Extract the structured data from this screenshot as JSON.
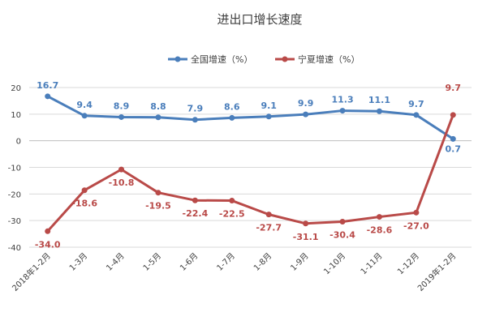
{
  "chart_data": {
    "type": "line",
    "title": "进出口增长速度",
    "categories": [
      "2018年1-2月",
      "1-3月",
      "1-4月",
      "1-5月",
      "1-6月",
      "1-7月",
      "1-8月",
      "1-9月",
      "1-10月",
      "1-11月",
      "1-12月",
      "2019年1-2月"
    ],
    "series": [
      {
        "name": "全国增速（%）",
        "color": "#4a7ebb",
        "values": [
          16.7,
          9.4,
          8.9,
          8.8,
          7.9,
          8.6,
          9.1,
          9.9,
          11.3,
          11.1,
          9.7,
          0.7
        ]
      },
      {
        "name": "宁夏增速（%）",
        "color": "#b94a48",
        "values": [
          -34.0,
          -18.6,
          -10.8,
          -19.5,
          -22.4,
          -22.5,
          -27.7,
          -31.1,
          -30.4,
          -28.6,
          -27.0,
          9.7
        ]
      }
    ],
    "ylim": [
      -40,
      20
    ],
    "yticks": [
      20,
      10,
      0,
      -10,
      -20,
      -30,
      -40
    ],
    "grid": true,
    "legend_position": "top"
  }
}
